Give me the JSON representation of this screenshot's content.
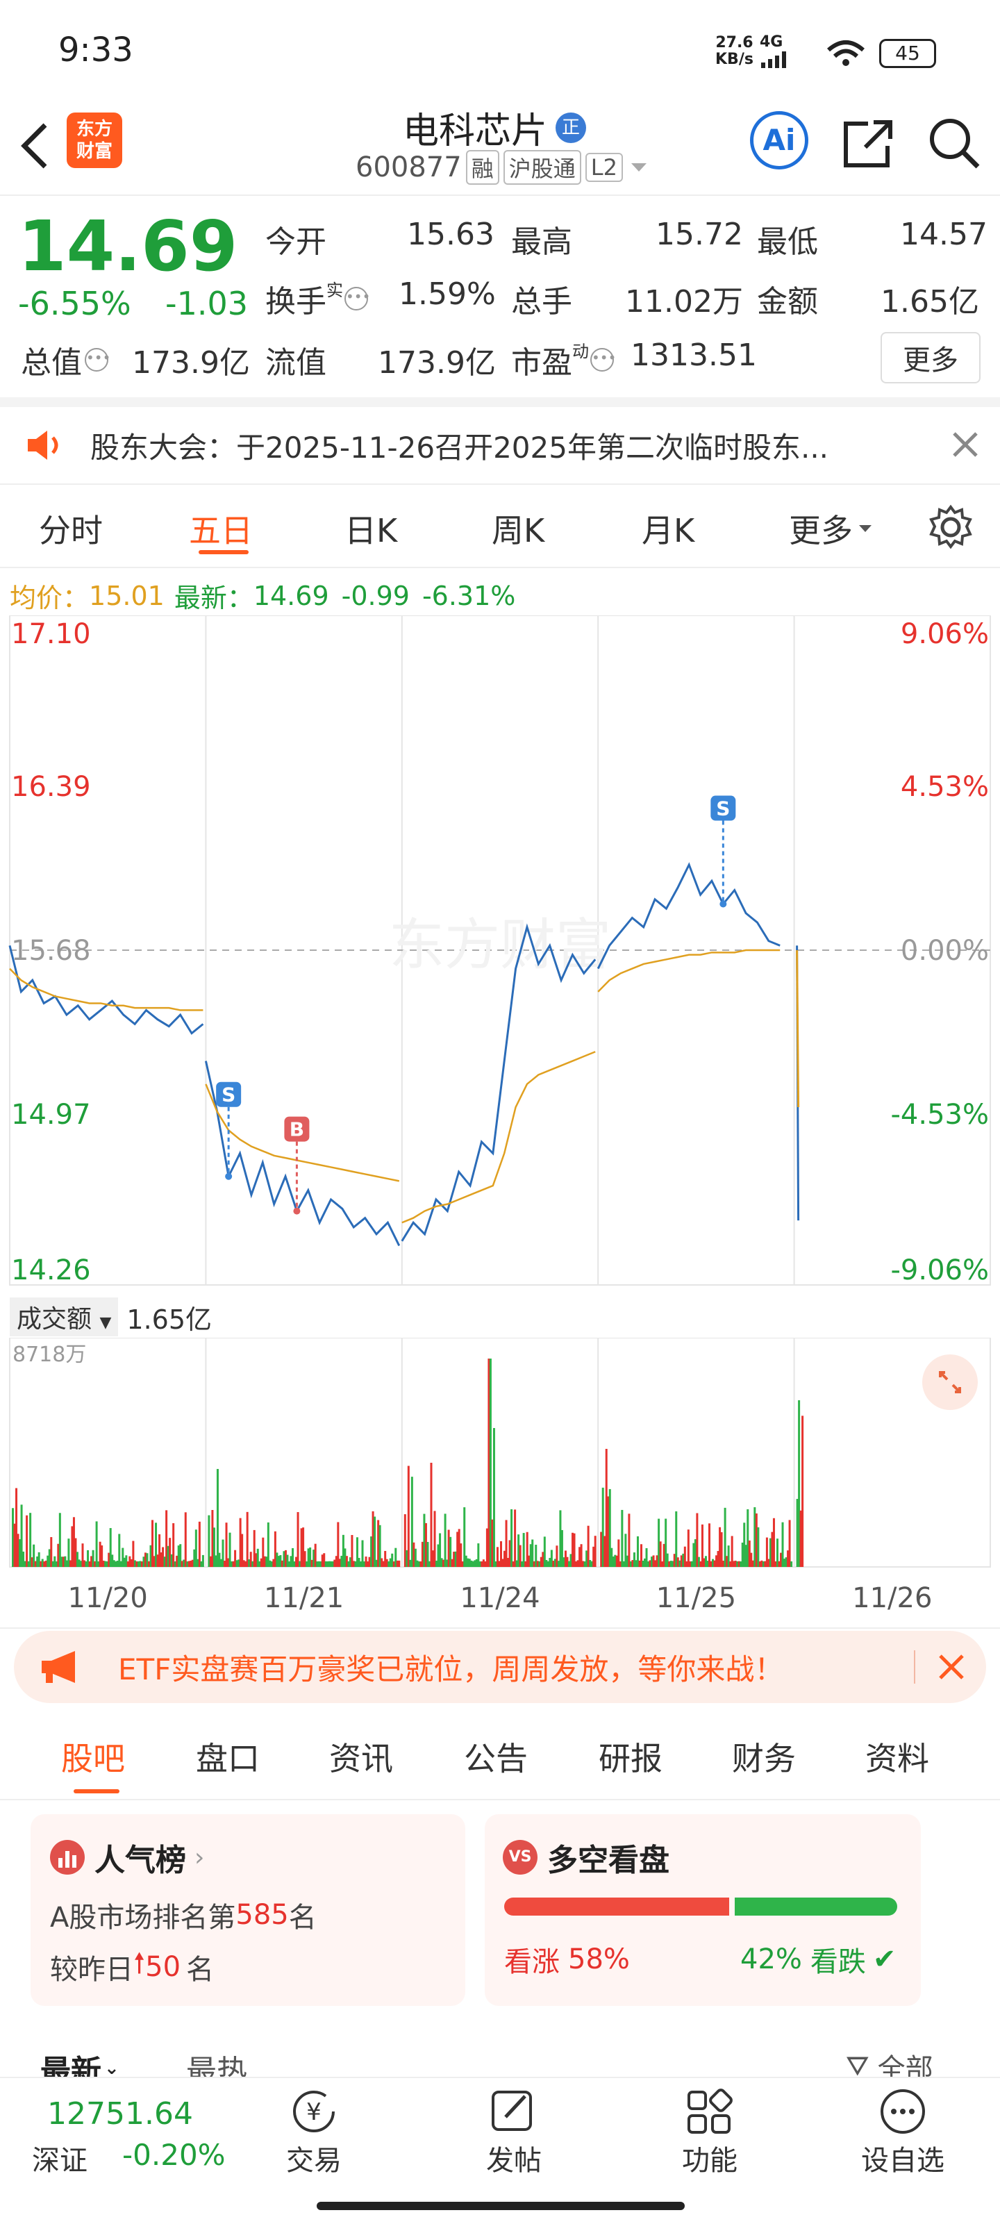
{
  "status_bar": {
    "time": "9:33",
    "net_speed_top": "27.6",
    "net_speed_bottom": "KB/s",
    "network": "4G",
    "battery": "45"
  },
  "header": {
    "stock_name": "电科芯片",
    "stock_badge": "正",
    "stock_code": "600877",
    "tags": [
      "融",
      "沪股通",
      "L2"
    ],
    "logo_text_1": "东方",
    "logo_text_2": "财富",
    "ai_label": "Ai"
  },
  "quote": {
    "price": "14.69",
    "change_pct": "-6.55%",
    "change": "-1.03",
    "stats": [
      {
        "label": "今开",
        "value": "15.63",
        "color": "#e6322d"
      },
      {
        "label": "最高",
        "value": "15.72",
        "color": "#333333"
      },
      {
        "label": "最低",
        "value": "14.57",
        "color": "#1f9e3a"
      }
    ],
    "stats2": [
      {
        "label": "换手",
        "sup": "实",
        "value": "1.59%"
      },
      {
        "label": "总手",
        "value": "11.02万"
      },
      {
        "label": "金额",
        "value": "1.65亿"
      }
    ],
    "stats3": [
      {
        "label": "总值",
        "value": "173.9亿"
      },
      {
        "label": "流值",
        "value": "173.9亿"
      },
      {
        "label": "市盈",
        "sup": "动",
        "value": "1313.51"
      }
    ],
    "more_button": "更多"
  },
  "notice": {
    "text": "股东大会：于2025-11-26召开2025年第二次临时股东..."
  },
  "chart_tabs": {
    "items": [
      "分时",
      "五日",
      "日K",
      "周K",
      "月K",
      "更多"
    ],
    "active": "五日"
  },
  "price_info": {
    "avg_label": "均价：",
    "avg_value": "15.01",
    "latest_label": "最新：",
    "latest_value": "14.69",
    "latest_change": "-0.99",
    "latest_pct": "-6.31%"
  },
  "chart_data": {
    "type": "line",
    "title": "",
    "y_ticks_left": [
      "17.10",
      "16.39",
      "15.68",
      "14.97",
      "14.26"
    ],
    "y_ticks_right": [
      "9.06%",
      "4.53%",
      "0.00%",
      "-4.53%",
      "-9.06%"
    ],
    "ylim": [
      14.26,
      17.1
    ],
    "baseline": 15.68,
    "x_labels": [
      "11/20",
      "11/21",
      "11/24",
      "11/25",
      "11/26"
    ],
    "series": [
      {
        "name": "最新",
        "color": "#2b6cb8",
        "values": [
          15.7,
          15.5,
          15.55,
          15.45,
          15.48,
          15.4,
          15.44,
          15.38,
          15.42,
          15.46,
          15.4,
          15.36,
          15.42,
          15.38,
          15.35,
          15.4,
          15.32,
          15.36,
          15.2,
          14.98,
          14.7,
          14.8,
          14.62,
          14.76,
          14.58,
          14.7,
          14.55,
          14.64,
          14.5,
          14.6,
          14.56,
          14.48,
          14.52,
          14.45,
          14.5,
          14.4,
          14.42,
          14.5,
          14.45,
          14.6,
          14.55,
          14.72,
          14.66,
          14.85,
          14.8,
          15.2,
          15.6,
          15.78,
          15.62,
          15.7,
          15.55,
          15.66,
          15.58,
          15.64,
          15.6,
          15.7,
          15.76,
          15.82,
          15.78,
          15.9,
          15.86,
          15.95,
          16.05,
          15.92,
          15.98,
          15.88,
          15.94,
          15.84,
          15.8,
          15.72,
          15.7,
          14.69
        ]
      },
      {
        "name": "均价",
        "color": "#e0a020",
        "values": [
          15.6,
          15.55,
          15.52,
          15.5,
          15.48,
          15.47,
          15.46,
          15.45,
          15.45,
          15.44,
          15.44,
          15.43,
          15.43,
          15.43,
          15.43,
          15.42,
          15.42,
          15.42,
          15.1,
          14.98,
          14.9,
          14.86,
          14.83,
          14.81,
          14.79,
          14.78,
          14.77,
          14.76,
          14.75,
          14.74,
          14.73,
          14.72,
          14.71,
          14.7,
          14.69,
          14.68,
          14.5,
          14.52,
          14.55,
          14.57,
          14.58,
          14.6,
          14.62,
          14.64,
          14.66,
          14.8,
          15.0,
          15.1,
          15.14,
          15.16,
          15.18,
          15.2,
          15.22,
          15.24,
          15.5,
          15.55,
          15.58,
          15.6,
          15.62,
          15.63,
          15.64,
          15.65,
          15.66,
          15.66,
          15.67,
          15.67,
          15.67,
          15.68,
          15.68,
          15.68,
          15.68,
          15.0
        ]
      }
    ],
    "markers": [
      {
        "label": "S",
        "color": "#3a86d8"
      },
      {
        "label": "B",
        "color": "#e05d5d"
      },
      {
        "label": "S",
        "color": "#3a86d8"
      }
    ],
    "watermark": "东方财富"
  },
  "volume": {
    "label": "成交额",
    "value": "1.65亿",
    "max_label": "8718万"
  },
  "banner": {
    "text": "ETF实盘赛百万豪奖已就位，周周发放，等你来战！"
  },
  "section_tabs": {
    "items": [
      "股吧",
      "盘口",
      "资讯",
      "公告",
      "研报",
      "财务",
      "资料"
    ],
    "active": "股吧"
  },
  "popularity": {
    "title": "人气榜",
    "line1_prefix": "A股市场排名第",
    "rank": "585",
    "line1_suffix": "名",
    "line2_prefix": "较昨日",
    "change": "50",
    "line2_suffix": "名"
  },
  "longshort": {
    "title": "多空看盘",
    "bull_label": "看涨",
    "bull_pct": "58%",
    "bear_pct": "42%",
    "bear_label": "看跌",
    "bull_fraction": 0.58
  },
  "feed_tabs": {
    "latest": "最新",
    "hot": "最热",
    "all": "全部"
  },
  "bottom_nav": {
    "index_value": "12751.64",
    "index_name": "深证",
    "index_change": "-0.20%",
    "items": [
      {
        "label": "交易",
        "icon": "trade-icon"
      },
      {
        "label": "发帖",
        "icon": "edit-icon"
      },
      {
        "label": "功能",
        "icon": "grid-icon"
      },
      {
        "label": "设自选",
        "icon": "more-icon"
      }
    ]
  }
}
